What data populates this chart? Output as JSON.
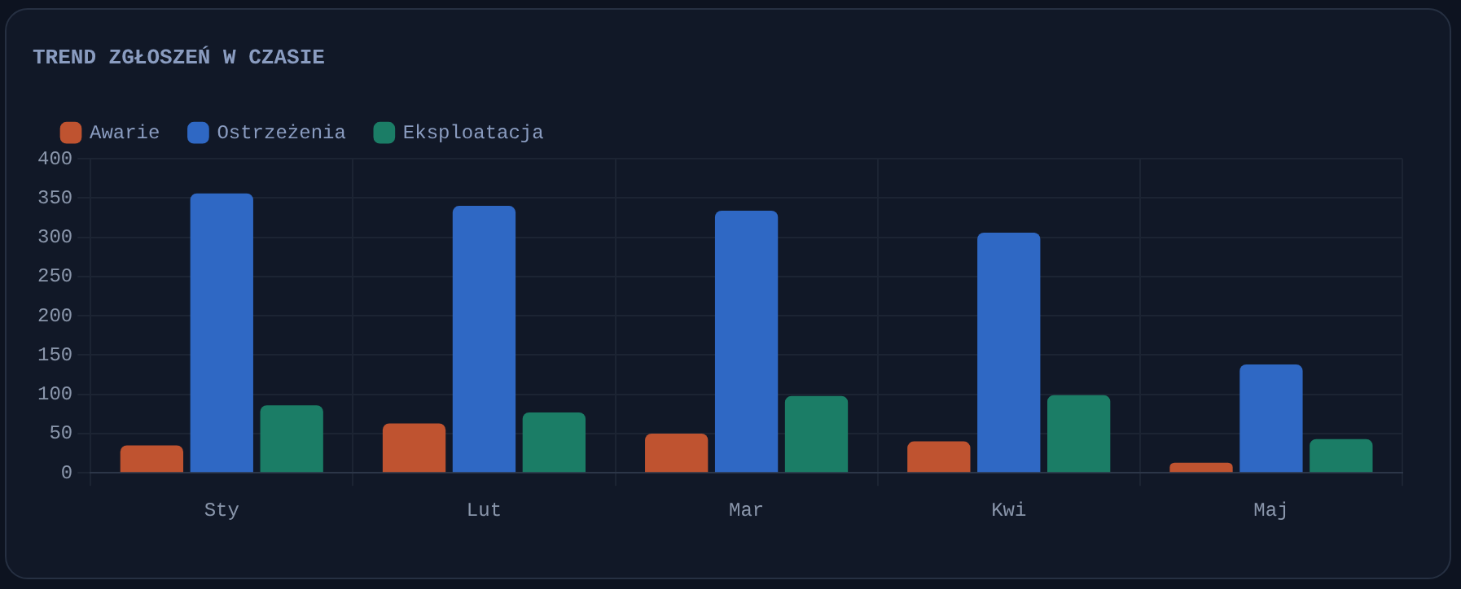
{
  "chart_data": {
    "type": "bar",
    "title": "TREND ZGŁOSZEŃ W CZASIE",
    "categories": [
      "Sty",
      "Lut",
      "Mar",
      "Kwi",
      "Maj"
    ],
    "series": [
      {
        "name": "Awarie",
        "color": "#bf5330",
        "values": [
          35,
          63,
          50,
          40,
          13
        ]
      },
      {
        "name": "Ostrzeżenia",
        "color": "#2f68c4",
        "values": [
          356,
          340,
          334,
          306,
          138
        ]
      },
      {
        "name": "Eksploatacja",
        "color": "#1b7d66",
        "values": [
          86,
          77,
          98,
          99,
          43
        ]
      }
    ],
    "ylim": [
      0,
      400
    ],
    "yticks": [
      0,
      50,
      100,
      150,
      200,
      250,
      300,
      350,
      400
    ],
    "grid": true,
    "legend": "top left"
  }
}
